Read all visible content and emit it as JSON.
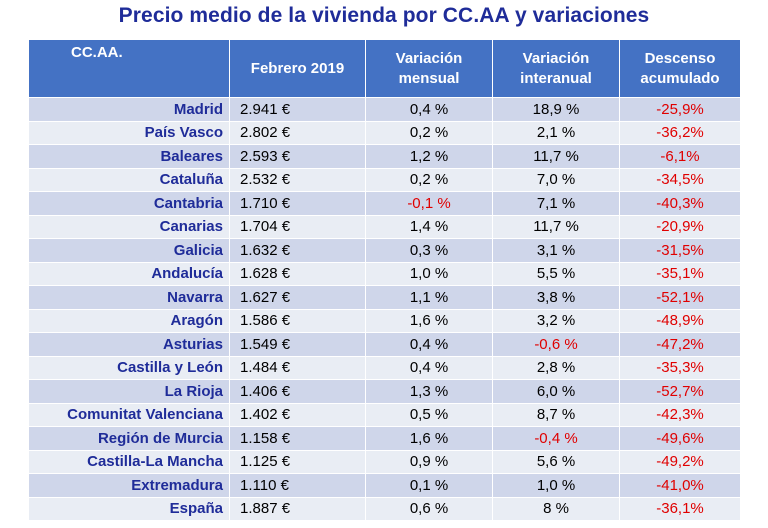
{
  "title": "Precio medio de la vivienda por CC.AA y variaciones",
  "headers": [
    "CC.AA.",
    "Febrero 2019",
    "Variación mensual",
    "Variación interanual",
    "Descenso acumulado"
  ],
  "rows": [
    [
      "Madrid",
      "2.941 €",
      "0,4 %",
      "18,9 %",
      "-25,9%"
    ],
    [
      "País Vasco",
      "2.802 €",
      "0,2 %",
      "2,1 %",
      "-36,2%"
    ],
    [
      "Baleares",
      "2.593 €",
      "1,2 %",
      "11,7 %",
      "-6,1%"
    ],
    [
      "Cataluña",
      "2.532 €",
      "0,2 %",
      "7,0 %",
      "-34,5%"
    ],
    [
      "Cantabria",
      "1.710 €",
      "-0,1 %",
      "7,1 %",
      "-40,3%"
    ],
    [
      "Canarias",
      "1.704 €",
      "1,4 %",
      "11,7 %",
      "-20,9%"
    ],
    [
      "Galicia",
      "1.632 €",
      "0,3 %",
      "3,1 %",
      "-31,5%"
    ],
    [
      "Andalucía",
      "1.628 €",
      "1,0 %",
      "5,5 %",
      "-35,1%"
    ],
    [
      "Navarra",
      "1.627 €",
      "1,1 %",
      "3,8 %",
      "-52,1%"
    ],
    [
      "Aragón",
      "1.586 €",
      "1,6 %",
      "3,2 %",
      "-48,9%"
    ],
    [
      "Asturias",
      "1.549 €",
      "0,4 %",
      "-0,6 %",
      "-47,2%"
    ],
    [
      "Castilla y León",
      "1.484 €",
      "0,4 %",
      "2,8 %",
      "-35,3%"
    ],
    [
      "La Rioja",
      "1.406 €",
      "1,3 %",
      "6,0 %",
      "-52,7%"
    ],
    [
      "Comunitat Valenciana",
      "1.402 €",
      "0,5 %",
      "8,7 %",
      "-42,3%"
    ],
    [
      "Región de Murcia",
      "1.158 €",
      "1,6 %",
      "-0,4 %",
      "-49,6%"
    ],
    [
      "Castilla-La Mancha",
      "1.125 €",
      "0,9 %",
      "5,6 %",
      "-49,2%"
    ],
    [
      "Extremadura",
      "1.110 €",
      "0,1 %",
      "1,0 %",
      "-41,0%"
    ],
    [
      "España",
      "1.887 €",
      "0,6 %",
      "8 %",
      "-36,1%"
    ]
  ],
  "colors": {
    "header_bg": "#4472c4",
    "title": "#1f2c99",
    "negative": "#e00000",
    "row_odd": "#cfd6ea",
    "row_even": "#e9edf4"
  }
}
